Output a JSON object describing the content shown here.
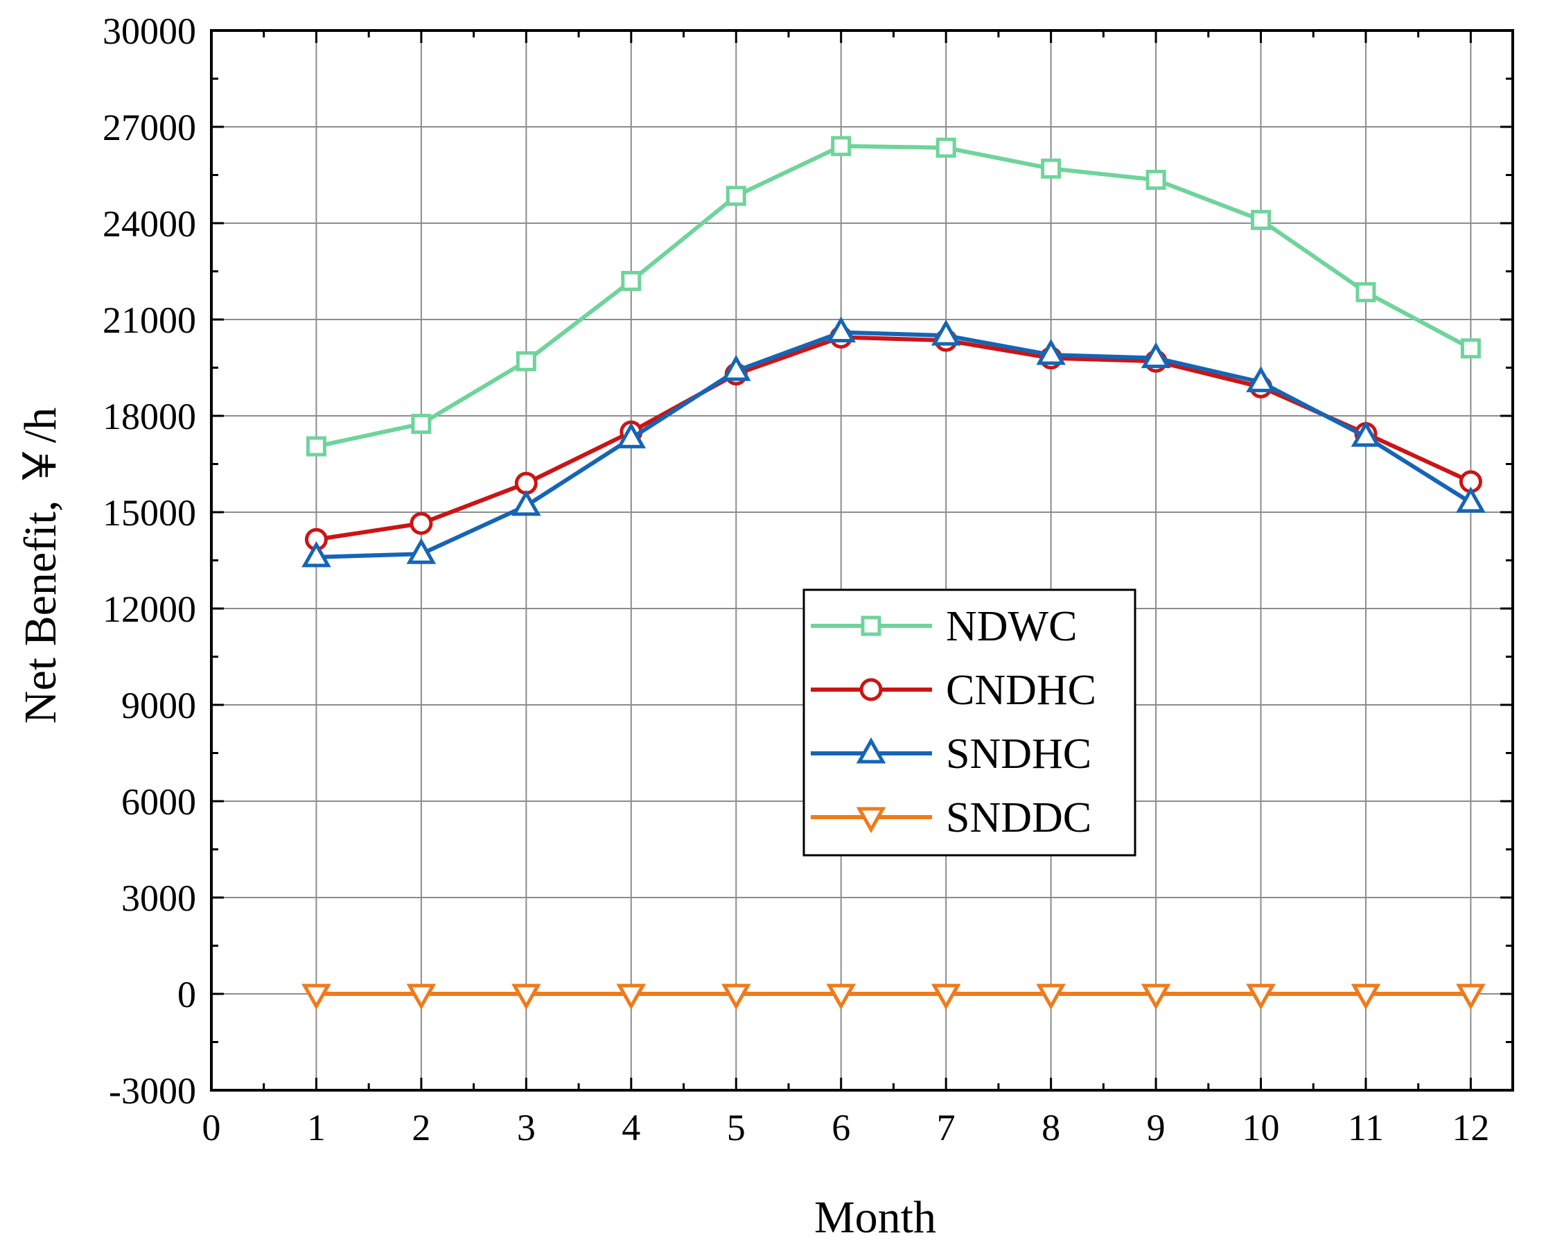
{
  "chart_data": {
    "type": "line",
    "title": "",
    "xlabel": "Month",
    "ylabel": "Net Benefit, ￥/h",
    "xlim": [
      0,
      12.4
    ],
    "ylim": [
      -3000,
      30000
    ],
    "x_ticks": [
      0,
      1,
      2,
      3,
      4,
      5,
      6,
      7,
      8,
      9,
      10,
      11,
      12
    ],
    "y_ticks": [
      -3000,
      0,
      3000,
      6000,
      9000,
      12000,
      15000,
      18000,
      21000,
      24000,
      27000,
      30000
    ],
    "grid": true,
    "legend_position": "center-right",
    "x": [
      1,
      2,
      3,
      4,
      5,
      6,
      7,
      8,
      9,
      10,
      11,
      12
    ],
    "series": [
      {
        "name": "NDWC",
        "marker": "square",
        "color": "#6fd49a",
        "values": [
          17050,
          17750,
          19700,
          22200,
          24850,
          26400,
          26350,
          25700,
          25350,
          24100,
          21850,
          20100
        ]
      },
      {
        "name": "CNDHC",
        "marker": "circle",
        "color": "#cc1414",
        "values": [
          14150,
          14650,
          15900,
          17500,
          19300,
          20450,
          20350,
          19800,
          19700,
          18900,
          17450,
          15950
        ]
      },
      {
        "name": "SNDHC",
        "marker": "triangle-up",
        "color": "#1565b5",
        "values": [
          13600,
          13700,
          15200,
          17300,
          19400,
          20600,
          20500,
          19900,
          19800,
          19050,
          17350,
          15300
        ]
      },
      {
        "name": "SNDDC",
        "marker": "triangle-down",
        "color": "#f07a1a",
        "values": [
          0,
          0,
          0,
          0,
          0,
          0,
          0,
          0,
          0,
          0,
          0,
          0
        ]
      }
    ]
  }
}
